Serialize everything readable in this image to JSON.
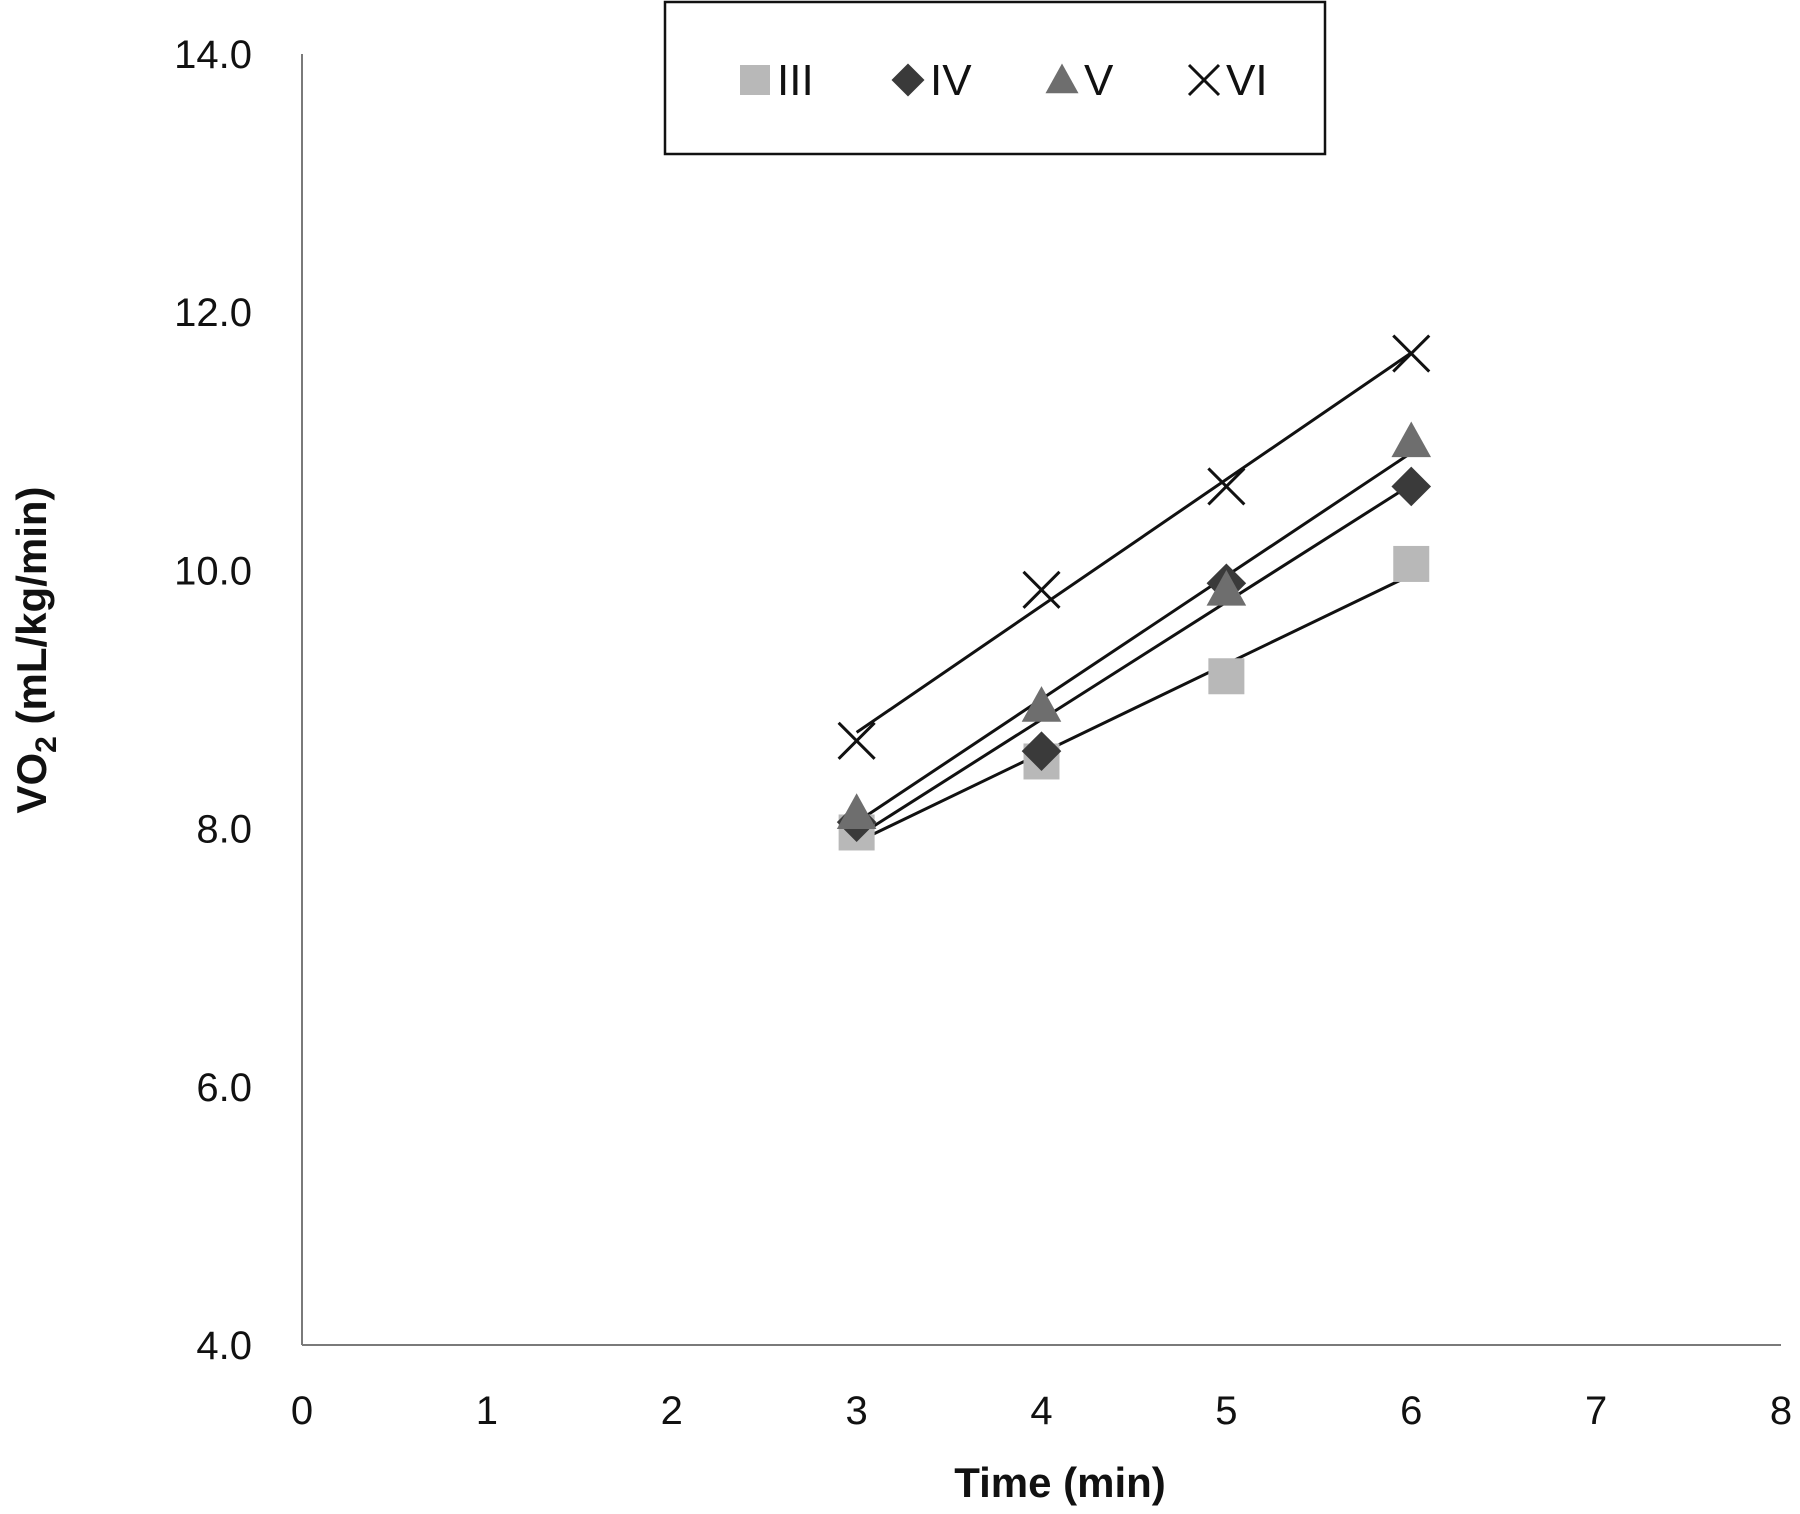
{
  "chart_data": {
    "type": "scatter",
    "xlabel": "Time (min)",
    "ylabel": "VO",
    "ylabel_subscript": "2",
    "ylabel_suffix": " (mL/kg/min)",
    "xlim": [
      0,
      8
    ],
    "ylim": [
      4.0,
      14.0
    ],
    "x_ticks": [
      "0",
      "1",
      "2",
      "3",
      "4",
      "5",
      "6",
      "7",
      "8"
    ],
    "y_ticks": [
      "4.0",
      "6.0",
      "8.0",
      "10.0",
      "12.0",
      "14.0"
    ],
    "grid": false,
    "legend_position": "top-center",
    "trendlines": "linear",
    "series": [
      {
        "name": "III",
        "marker": "square",
        "color": "#b8b8b8",
        "x": [
          3,
          4,
          5,
          6
        ],
        "y": [
          7.97,
          8.52,
          9.18,
          10.05
        ]
      },
      {
        "name": "IV",
        "marker": "diamond",
        "color": "#3a3a3a",
        "x": [
          3,
          4,
          5,
          6
        ],
        "y": [
          8.05,
          8.6,
          9.9,
          10.65
        ]
      },
      {
        "name": "V",
        "marker": "triangle",
        "color": "#6e6e6e",
        "x": [
          3,
          4,
          5,
          6
        ],
        "y": [
          8.12,
          8.95,
          9.85,
          11.0
        ]
      },
      {
        "name": "VI",
        "marker": "x",
        "color": "#111111",
        "x": [
          3,
          4,
          5,
          6
        ],
        "y": [
          8.68,
          9.85,
          10.65,
          11.68
        ]
      }
    ]
  }
}
